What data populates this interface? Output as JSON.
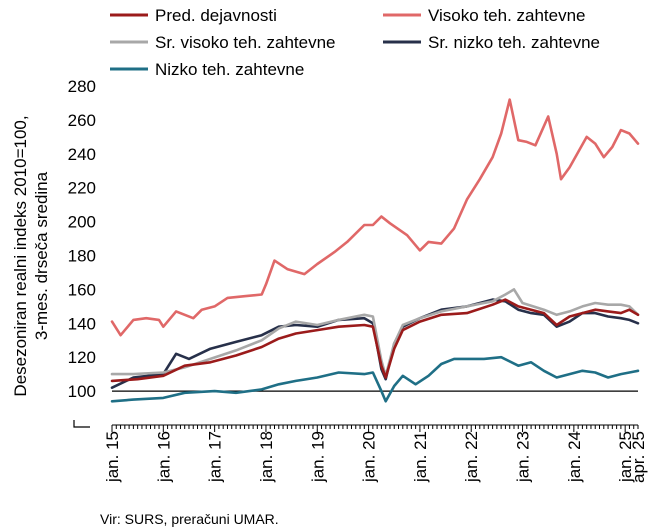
{
  "chart_data": {
    "type": "line",
    "title": "",
    "ylabel_lines": [
      "Desezoniran realni indeks 2010=100,",
      "3-mes. drseča sredina"
    ],
    "ylim": [
      80,
      280
    ],
    "yticks": [
      100,
      120,
      140,
      160,
      180,
      200,
      220,
      240,
      260,
      280
    ],
    "reference_line": 100,
    "x_start": "2015-01",
    "x_end": "2025-04",
    "xticks": [
      {
        "date": "2015-01",
        "label": "jan. 15"
      },
      {
        "date": "2016-01",
        "label": "jan. 16"
      },
      {
        "date": "2017-01",
        "label": "jan. 17"
      },
      {
        "date": "2018-01",
        "label": "jan. 18"
      },
      {
        "date": "2019-01",
        "label": "jan. 19"
      },
      {
        "date": "2020-01",
        "label": "jan. 20"
      },
      {
        "date": "2021-01",
        "label": "jan. 21"
      },
      {
        "date": "2022-01",
        "label": "jan. 22"
      },
      {
        "date": "2023-01",
        "label": "jan. 23"
      },
      {
        "date": "2024-01",
        "label": "jan. 24"
      },
      {
        "date": "2025-01",
        "label": "jan. 25"
      },
      {
        "date": "2025-04",
        "label": "apr. 25"
      }
    ],
    "legend_position": "top",
    "source": "Vir: SURS, preračuni UMAR.",
    "series": [
      {
        "name": "Pred. dejavnosti",
        "color": "#9b1b1b",
        "points": [
          [
            "2015-01",
            106
          ],
          [
            "2015-07",
            107
          ],
          [
            "2016-01",
            109
          ],
          [
            "2016-06",
            115
          ],
          [
            "2016-12",
            117
          ],
          [
            "2017-06",
            121
          ],
          [
            "2017-12",
            126
          ],
          [
            "2018-04",
            131
          ],
          [
            "2018-08",
            134
          ],
          [
            "2019-01",
            136
          ],
          [
            "2019-06",
            138
          ],
          [
            "2019-12",
            139
          ],
          [
            "2020-02",
            138
          ],
          [
            "2020-04",
            115
          ],
          [
            "2020-05",
            108
          ],
          [
            "2020-07",
            125
          ],
          [
            "2020-09",
            136
          ],
          [
            "2021-01",
            141
          ],
          [
            "2021-06",
            145
          ],
          [
            "2021-12",
            146
          ],
          [
            "2022-06",
            151
          ],
          [
            "2022-09",
            154
          ],
          [
            "2022-12",
            150
          ],
          [
            "2023-03",
            148
          ],
          [
            "2023-06",
            146
          ],
          [
            "2023-09",
            139
          ],
          [
            "2023-12",
            144
          ],
          [
            "2024-03",
            146
          ],
          [
            "2024-06",
            148
          ],
          [
            "2024-09",
            147
          ],
          [
            "2024-12",
            146
          ],
          [
            "2025-02",
            148
          ],
          [
            "2025-04",
            145
          ]
        ]
      },
      {
        "name": "Visoko teh. zahtevne",
        "color": "#e06868",
        "points": [
          [
            "2015-01",
            141
          ],
          [
            "2015-03",
            133
          ],
          [
            "2015-06",
            142
          ],
          [
            "2015-09",
            143
          ],
          [
            "2015-12",
            142
          ],
          [
            "2016-01",
            138
          ],
          [
            "2016-04",
            147
          ],
          [
            "2016-08",
            143
          ],
          [
            "2016-10",
            148
          ],
          [
            "2017-01",
            150
          ],
          [
            "2017-04",
            155
          ],
          [
            "2017-08",
            156
          ],
          [
            "2017-12",
            157
          ],
          [
            "2018-01",
            163
          ],
          [
            "2018-03",
            177
          ],
          [
            "2018-06",
            172
          ],
          [
            "2018-10",
            169
          ],
          [
            "2019-01",
            175
          ],
          [
            "2019-05",
            182
          ],
          [
            "2019-08",
            188
          ],
          [
            "2019-12",
            198
          ],
          [
            "2020-02",
            198
          ],
          [
            "2020-04",
            203
          ],
          [
            "2020-06",
            199
          ],
          [
            "2020-10",
            192
          ],
          [
            "2021-01",
            183
          ],
          [
            "2021-03",
            188
          ],
          [
            "2021-06",
            187
          ],
          [
            "2021-09",
            196
          ],
          [
            "2021-12",
            213
          ],
          [
            "2022-03",
            225
          ],
          [
            "2022-06",
            238
          ],
          [
            "2022-08",
            252
          ],
          [
            "2022-10",
            272
          ],
          [
            "2022-12",
            248
          ],
          [
            "2023-02",
            247
          ],
          [
            "2023-04",
            245
          ],
          [
            "2023-07",
            262
          ],
          [
            "2023-09",
            240
          ],
          [
            "2023-10",
            225
          ],
          [
            "2023-12",
            232
          ],
          [
            "2024-04",
            250
          ],
          [
            "2024-06",
            246
          ],
          [
            "2024-08",
            238
          ],
          [
            "2024-10",
            244
          ],
          [
            "2024-12",
            254
          ],
          [
            "2025-02",
            252
          ],
          [
            "2025-04",
            246
          ]
        ]
      },
      {
        "name": "Sr. visoko teh. zahtevne",
        "color": "#a8a8a8",
        "points": [
          [
            "2015-01",
            110
          ],
          [
            "2015-06",
            110
          ],
          [
            "2016-01",
            111
          ],
          [
            "2016-06",
            114
          ],
          [
            "2016-12",
            119
          ],
          [
            "2017-06",
            124
          ],
          [
            "2017-12",
            130
          ],
          [
            "2018-04",
            137
          ],
          [
            "2018-08",
            141
          ],
          [
            "2019-01",
            139
          ],
          [
            "2019-06",
            142
          ],
          [
            "2019-12",
            145
          ],
          [
            "2020-02",
            144
          ],
          [
            "2020-04",
            118
          ],
          [
            "2020-05",
            109
          ],
          [
            "2020-07",
            128
          ],
          [
            "2020-09",
            139
          ],
          [
            "2021-01",
            143
          ],
          [
            "2021-06",
            147
          ],
          [
            "2021-12",
            150
          ],
          [
            "2022-06",
            153
          ],
          [
            "2022-09",
            157
          ],
          [
            "2022-11",
            160
          ],
          [
            "2023-01",
            152
          ],
          [
            "2023-06",
            148
          ],
          [
            "2023-09",
            145
          ],
          [
            "2023-12",
            147
          ],
          [
            "2024-03",
            150
          ],
          [
            "2024-06",
            152
          ],
          [
            "2024-09",
            151
          ],
          [
            "2024-12",
            151
          ],
          [
            "2025-02",
            150
          ],
          [
            "2025-04",
            145
          ]
        ]
      },
      {
        "name": "Sr. nizko teh. zahtevne",
        "color": "#27304a",
        "points": [
          [
            "2015-01",
            102
          ],
          [
            "2015-06",
            108
          ],
          [
            "2016-01",
            110
          ],
          [
            "2016-04",
            122
          ],
          [
            "2016-07",
            119
          ],
          [
            "2016-12",
            125
          ],
          [
            "2017-06",
            129
          ],
          [
            "2017-12",
            133
          ],
          [
            "2018-04",
            138
          ],
          [
            "2018-08",
            139
          ],
          [
            "2019-01",
            138
          ],
          [
            "2019-06",
            142
          ],
          [
            "2019-12",
            143
          ],
          [
            "2020-02",
            140
          ],
          [
            "2020-04",
            113
          ],
          [
            "2020-05",
            107
          ],
          [
            "2020-07",
            128
          ],
          [
            "2020-09",
            138
          ],
          [
            "2021-01",
            143
          ],
          [
            "2021-06",
            148
          ],
          [
            "2021-12",
            150
          ],
          [
            "2022-06",
            154
          ],
          [
            "2022-09",
            153
          ],
          [
            "2022-12",
            148
          ],
          [
            "2023-03",
            146
          ],
          [
            "2023-06",
            145
          ],
          [
            "2023-09",
            138
          ],
          [
            "2023-12",
            141
          ],
          [
            "2024-03",
            146
          ],
          [
            "2024-06",
            146
          ],
          [
            "2024-09",
            144
          ],
          [
            "2024-12",
            143
          ],
          [
            "2025-02",
            142
          ],
          [
            "2025-04",
            140
          ]
        ]
      },
      {
        "name": "Nizko teh. zahtevne",
        "color": "#1f6f86",
        "points": [
          [
            "2015-01",
            94
          ],
          [
            "2015-06",
            95
          ],
          [
            "2016-01",
            96
          ],
          [
            "2016-06",
            99
          ],
          [
            "2017-01",
            100
          ],
          [
            "2017-06",
            99
          ],
          [
            "2017-12",
            101
          ],
          [
            "2018-04",
            104
          ],
          [
            "2018-08",
            106
          ],
          [
            "2019-01",
            108
          ],
          [
            "2019-06",
            111
          ],
          [
            "2019-12",
            110
          ],
          [
            "2020-02",
            111
          ],
          [
            "2020-04",
            100
          ],
          [
            "2020-05",
            94
          ],
          [
            "2020-07",
            103
          ],
          [
            "2020-09",
            109
          ],
          [
            "2020-12",
            104
          ],
          [
            "2021-03",
            109
          ],
          [
            "2021-06",
            116
          ],
          [
            "2021-09",
            119
          ],
          [
            "2021-12",
            119
          ],
          [
            "2022-04",
            119
          ],
          [
            "2022-08",
            120
          ],
          [
            "2022-12",
            115
          ],
          [
            "2023-03",
            117
          ],
          [
            "2023-06",
            112
          ],
          [
            "2023-09",
            108
          ],
          [
            "2023-12",
            110
          ],
          [
            "2024-03",
            112
          ],
          [
            "2024-06",
            111
          ],
          [
            "2024-09",
            108
          ],
          [
            "2024-12",
            110
          ],
          [
            "2025-02",
            111
          ],
          [
            "2025-04",
            112
          ]
        ]
      }
    ]
  }
}
